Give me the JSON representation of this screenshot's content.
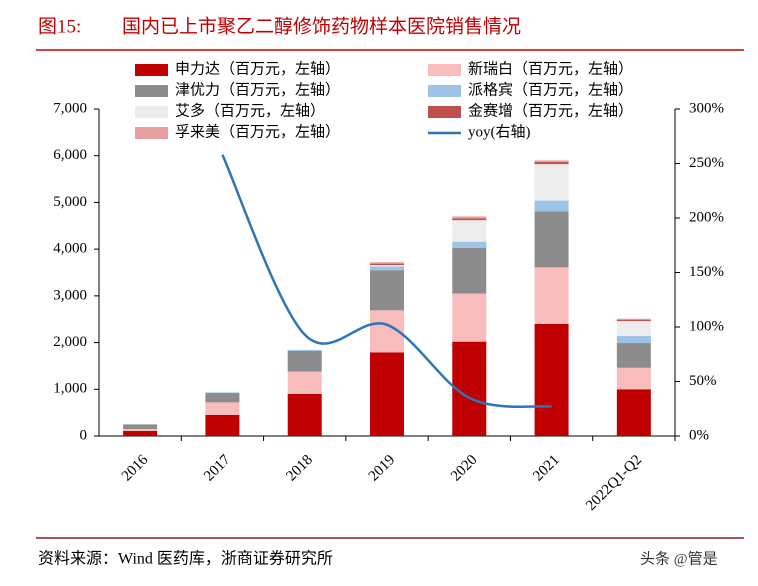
{
  "header": {
    "label": "图15:",
    "title": "国内已上市聚乙二醇修饰药物样本医院销售情况"
  },
  "chart_data": {
    "type": "bar",
    "categories": [
      "2016",
      "2017",
      "2018",
      "2019",
      "2020",
      "2021",
      "2022Q1-Q2"
    ],
    "series": [
      {
        "name": "申力达（百万元，左轴）",
        "color": "#c00000",
        "values": [
          110,
          450,
          900,
          1790,
          2020,
          2400,
          1000
        ]
      },
      {
        "name": "新瑞白（百万元，左轴）",
        "color": "#f8bcbc",
        "values": [
          40,
          270,
          480,
          900,
          1030,
          1210,
          460
        ]
      },
      {
        "name": "津优力（百万元，左轴）",
        "color": "#8c8c8c",
        "values": [
          100,
          200,
          440,
          860,
          980,
          1200,
          530
        ]
      },
      {
        "name": "派格宾（百万元，左轴）",
        "color": "#9dc3e6",
        "values": [
          0,
          10,
          20,
          80,
          130,
          230,
          150
        ]
      },
      {
        "name": "艾多（百万元，左轴）",
        "color": "#ececec",
        "values": [
          10,
          10,
          10,
          30,
          460,
          780,
          320
        ]
      },
      {
        "name": "金赛增（百万元，左轴）",
        "color": "#c0504d",
        "values": [
          0,
          0,
          0,
          30,
          40,
          50,
          30
        ]
      },
      {
        "name": "孚来美（百万元，左轴）",
        "color": "#e6a0a0",
        "values": [
          0,
          0,
          0,
          30,
          40,
          30,
          20
        ]
      },
      {
        "name": "yoy(右轴)",
        "color": "#2e75b6",
        "axis": "y2",
        "type": "line",
        "values": [
          null,
          258,
          93,
          102,
          35,
          27,
          null
        ]
      }
    ],
    "ylim": [
      0,
      7000
    ],
    "yticks": [
      0,
      {
        "value": 1000,
        "label": "1,000"
      },
      {
        "value": 2000,
        "label": "2,000"
      },
      {
        "value": 3000,
        "label": "3,000"
      },
      {
        "value": 4000,
        "label": "4,000"
      },
      {
        "value": 5000,
        "label": "5,000"
      },
      {
        "value": 6000,
        "label": "6,000"
      },
      {
        "value": 7000,
        "label": "7,000"
      }
    ],
    "y2lim": [
      0,
      300
    ],
    "y2ticks": [
      {
        "value": 0,
        "label": "0%"
      },
      {
        "value": 50,
        "label": "50%"
      },
      {
        "value": 100,
        "label": "100%"
      },
      {
        "value": 150,
        "label": "150%"
      },
      {
        "value": 200,
        "label": "200%"
      },
      {
        "value": 250,
        "label": "250%"
      },
      {
        "value": 300,
        "label": "300%"
      }
    ]
  },
  "footer": {
    "source": "资料来源：Wind 医药库，浙商证券研究所",
    "watermark": "头条 @管是"
  }
}
